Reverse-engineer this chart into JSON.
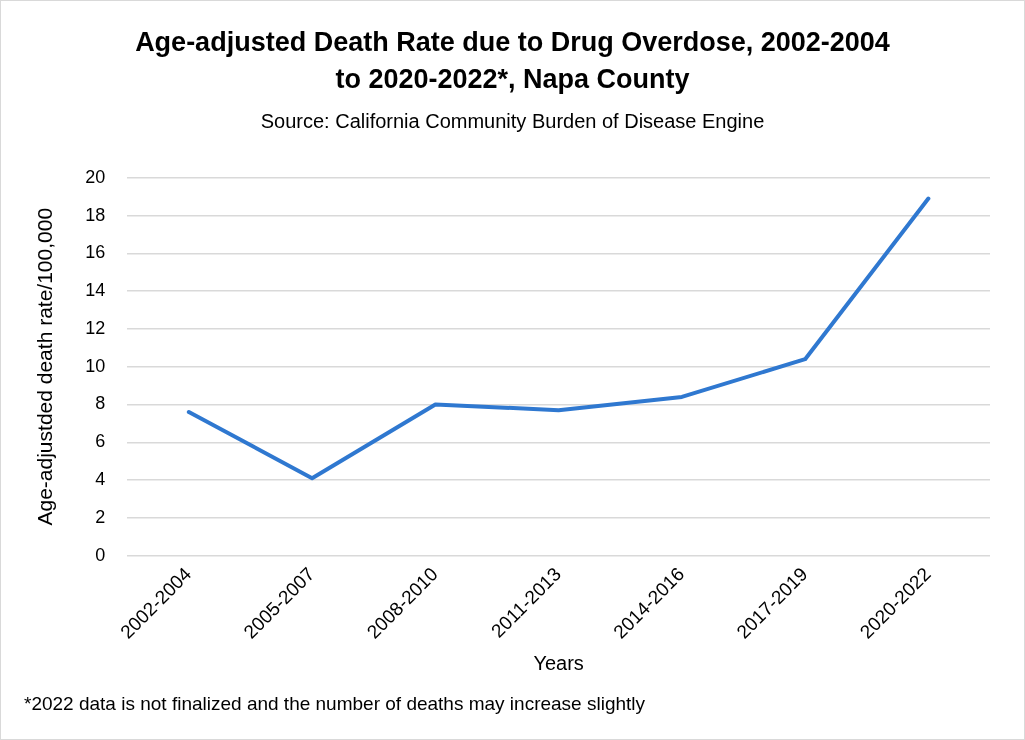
{
  "chart_data": {
    "type": "line",
    "title": "Age-adjusted Death Rate due to Drug Overdose, 2002-2004 to 2020-2022*, Napa County",
    "subtitle": "Source: California Community Burden of Disease Engine",
    "xlabel": "Years",
    "ylabel": "Age-adjustded death rate/100,000",
    "categories": [
      "2002-2004",
      "2005-2007",
      "2008-2010",
      "2011-2013",
      "2014-2016",
      "2017-2019",
      "2020-2022"
    ],
    "series": [
      {
        "color": "#2f78d0",
        "values": [
          7.6,
          4.1,
          8.0,
          7.7,
          8.4,
          10.4,
          18.9
        ]
      }
    ],
    "ylim": [
      0,
      20
    ],
    "yticks": [
      0,
      2,
      4,
      6,
      8,
      10,
      12,
      14,
      16,
      18,
      20
    ],
    "grid": "y",
    "legend": false,
    "marker": "none",
    "line_style": "solid",
    "annotations": [
      "*2022 data is not finalized and the number of deaths may increase slightly"
    ]
  }
}
